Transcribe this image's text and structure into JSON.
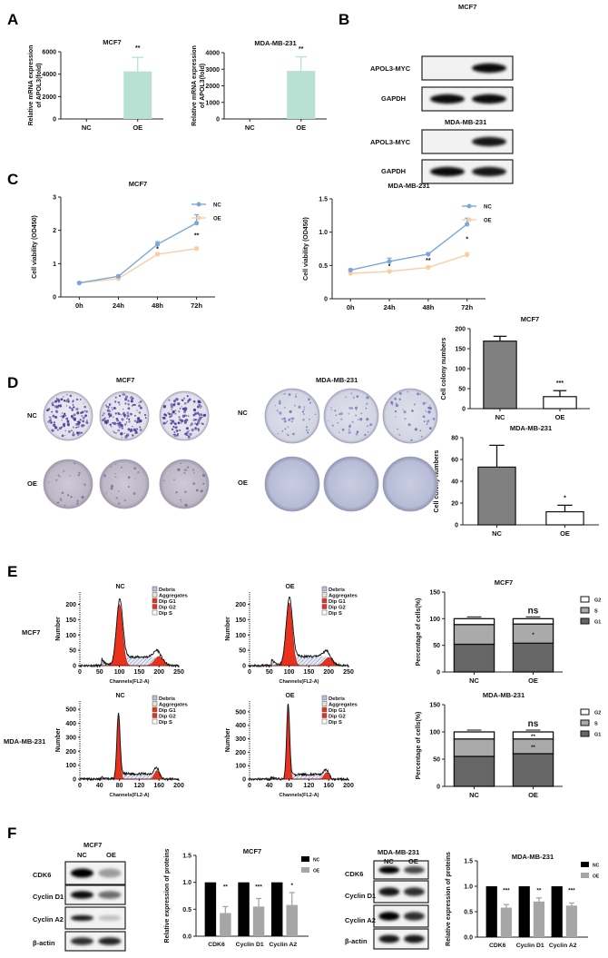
{
  "panels": {
    "A": "A",
    "B": "B",
    "C": "C",
    "D": "D",
    "E": "E",
    "F": "F"
  },
  "blots_B": {
    "groups": [
      {
        "title": "MCF7",
        "rows": [
          {
            "label": "APOL3-MYC",
            "bands": [
              0.0,
              0.95
            ]
          },
          {
            "label": "GAPDH",
            "bands": [
              0.95,
              0.95
            ]
          }
        ]
      },
      {
        "title": "MDA-MB-231",
        "rows": [
          {
            "label": "APOL3-MYC",
            "bands": [
              0.0,
              0.9
            ]
          },
          {
            "label": "GAPDH",
            "bands": [
              0.95,
              0.9
            ]
          }
        ]
      }
    ]
  },
  "plates_D": {
    "groups": [
      {
        "title": "MCF7"
      },
      {
        "title": "MDA-MB-231"
      }
    ],
    "rows": [
      "NC",
      "OE"
    ]
  },
  "flow_E": {
    "row_labels": [
      "MCF7",
      "MDA-MB-231"
    ],
    "legend": [
      "Debris",
      "Aggregates",
      "Dip G1",
      "Dip G2",
      "Dip S"
    ],
    "colors": {
      "dip": "#e8321e",
      "outline": "#111111",
      "debris": "#9aa7c7"
    },
    "histograms": [
      {
        "title": "NC",
        "xlabel": "Channels(FL2-A)",
        "ylabel": "Number",
        "xticks": [
          "0",
          "50",
          "100",
          "150",
          "200",
          "250"
        ],
        "yticks": [
          "0",
          "50",
          "100",
          "150",
          "200"
        ],
        "ylim": [
          0,
          240
        ],
        "xlim": [
          0,
          250
        ]
      },
      {
        "title": "OE",
        "xlabel": "Channels(FL2-A)",
        "ylabel": "Number",
        "xticks": [
          "0",
          "50",
          "100",
          "150",
          "200",
          "250"
        ],
        "yticks": [
          "0",
          "50",
          "100",
          "150",
          "200"
        ],
        "ylim": [
          0,
          240
        ],
        "xlim": [
          0,
          250
        ]
      },
      {
        "title": "NC",
        "xlabel": "Channels(FL2-A)",
        "ylabel": "Number",
        "xticks": [
          "0",
          "40",
          "80",
          "120",
          "160",
          "200"
        ],
        "yticks": [
          "0",
          "100",
          "200",
          "300",
          "400",
          "500"
        ],
        "ylim": [
          0,
          560
        ],
        "xlim": [
          0,
          200
        ]
      },
      {
        "title": "OE",
        "xlabel": "Channels(FL2-A)",
        "ylabel": "Number",
        "xticks": [
          "0",
          "40",
          "80",
          "120",
          "160",
          "200"
        ],
        "yticks": [
          "0",
          "100",
          "200",
          "300",
          "400",
          "500"
        ],
        "ylim": [
          0,
          580
        ],
        "xlim": [
          0,
          200
        ]
      }
    ]
  },
  "blots_F": {
    "groups": [
      {
        "title": "MCF7",
        "columns": [
          "NC",
          "OE"
        ],
        "rows": [
          {
            "label": "CDK6",
            "bands": [
              1.0,
              0.35
            ]
          },
          {
            "label": "Cyclin D1",
            "bands": [
              0.95,
              0.55
            ]
          },
          {
            "label": "Cyclin A2",
            "bands": [
              0.9,
              0.2
            ]
          },
          {
            "label": "β-actin",
            "bands": [
              0.8,
              0.85
            ]
          }
        ]
      },
      {
        "title": "MDA-MB-231",
        "columns": [
          "NC",
          "OE"
        ],
        "rows": [
          {
            "label": "CDK6",
            "bands": [
              1.0,
              0.7
            ]
          },
          {
            "label": "Cyclin D1",
            "bands": [
              0.9,
              0.8
            ]
          },
          {
            "label": "Cyclin A2",
            "bands": [
              1.0,
              0.8
            ]
          },
          {
            "label": "β-actin",
            "bands": [
              0.9,
              0.9
            ]
          }
        ]
      }
    ]
  },
  "chart_data": [
    {
      "id": "A-MCF7",
      "type": "bar",
      "title": "MCF7",
      "ylabel": [
        "Relative mRNA expression",
        "of APOL3(fold)"
      ],
      "categories": [
        "NC",
        "OE"
      ],
      "values": [
        1,
        4250
      ],
      "errors": [
        0,
        1250
      ],
      "annotations": [
        "",
        "**"
      ],
      "ylim": [
        0,
        6000
      ],
      "yticks": [
        "0",
        "2000",
        "4000",
        "6000"
      ],
      "colors": [
        "#b9e1d3",
        "#b9e1d3"
      ],
      "stroke": "none"
    },
    {
      "id": "A-MDA",
      "type": "bar",
      "title": "MDA-MB-231",
      "ylabel": [
        "Relative mRNA expression",
        "of APOL3(fold)"
      ],
      "categories": [
        "NC",
        "OE"
      ],
      "values": [
        1,
        2900
      ],
      "errors": [
        0,
        850
      ],
      "annotations": [
        "",
        "**"
      ],
      "ylim": [
        0,
        4000
      ],
      "yticks": [
        "0",
        "1000",
        "2000",
        "3000",
        "4000"
      ],
      "colors": [
        "#b9e1d3",
        "#b9e1d3"
      ],
      "stroke": "none"
    },
    {
      "id": "C-MCF7",
      "type": "line",
      "title": "MCF7",
      "ylabel": [
        "Cell viability (OD450)"
      ],
      "x": [
        "0h",
        "24h",
        "48h",
        "72h"
      ],
      "ylim": [
        0,
        3
      ],
      "yticks": [
        "0",
        "1",
        "2",
        "3"
      ],
      "series": [
        {
          "name": "NC",
          "values": [
            0.42,
            0.62,
            1.58,
            2.22
          ],
          "errors": [
            0.03,
            0.03,
            0.08,
            0.25
          ],
          "color": "#7ba7d9"
        },
        {
          "name": "OE",
          "values": [
            0.42,
            0.55,
            1.28,
            1.45
          ],
          "errors": [
            0.02,
            0.02,
            0.05,
            0.05
          ],
          "color": "#f7cfa3"
        }
      ],
      "annotations": [
        "",
        "",
        "*",
        "**"
      ]
    },
    {
      "id": "C-MDA",
      "type": "line",
      "title": "MDA-MB-231",
      "ylabel": [
        "Cell viability (OD450)"
      ],
      "x": [
        "0h",
        "24h",
        "48h",
        "72h"
      ],
      "ylim": [
        0,
        1.5
      ],
      "yticks": [
        "0",
        "0.5",
        "1.0",
        "1.5"
      ],
      "series": [
        {
          "name": "NC",
          "values": [
            0.43,
            0.56,
            0.67,
            1.12
          ],
          "errors": [
            0.02,
            0.05,
            0.02,
            0.09
          ],
          "color": "#7ba7d9"
        },
        {
          "name": "OE",
          "values": [
            0.38,
            0.41,
            0.47,
            0.66
          ],
          "errors": [
            0.01,
            0.02,
            0.02,
            0.03
          ],
          "color": "#f7cfa3"
        }
      ],
      "annotations": [
        "",
        "*",
        "**",
        "*"
      ]
    },
    {
      "id": "D-MCF7",
      "type": "bar",
      "title": "MCF7",
      "ylabel": [
        "Cell colony numbers"
      ],
      "categories": [
        "NC",
        "OE"
      ],
      "values": [
        169,
        30
      ],
      "errors": [
        12,
        15
      ],
      "annotations": [
        "",
        "***"
      ],
      "ylim": [
        0,
        200
      ],
      "yticks": [
        "0",
        "50",
        "100",
        "150",
        "200"
      ],
      "colors": [
        "#808080",
        "#ffffff"
      ],
      "stroke": "#111111"
    },
    {
      "id": "D-MDA",
      "type": "bar",
      "title": "MDA-MB-231",
      "ylabel": [
        "Cell colony numbers"
      ],
      "categories": [
        "NC",
        "OE"
      ],
      "values": [
        53,
        12
      ],
      "errors": [
        20,
        6
      ],
      "annotations": [
        "",
        "*"
      ],
      "ylim": [
        0,
        80
      ],
      "yticks": [
        "0",
        "20",
        "40",
        "60",
        "80"
      ],
      "colors": [
        "#808080",
        "#ffffff"
      ],
      "stroke": "#111111"
    },
    {
      "id": "E-MCF7",
      "type": "stacked-bar",
      "title": "MCF7",
      "ylabel": [
        "Percentage of cells(%)"
      ],
      "categories": [
        "NC",
        "OE"
      ],
      "ylim": [
        0,
        150
      ],
      "yticks": [
        "0",
        "50",
        "100",
        "150"
      ],
      "series": [
        {
          "name": "G1",
          "values": [
            52,
            54
          ],
          "color": "#666666"
        },
        {
          "name": "S",
          "values": [
            37,
            36
          ],
          "color": "#aaaaaa"
        },
        {
          "name": "G2",
          "values": [
            11,
            10
          ],
          "color": "#ffffff"
        }
      ],
      "annotation": [
        "",
        "ns"
      ],
      "inner_annotations": [
        {
          "category": 1,
          "series": "S",
          "text": "*"
        }
      ]
    },
    {
      "id": "E-MDA",
      "type": "stacked-bar",
      "title": "MDA-MB-231",
      "ylabel": [
        "Percentage of cells(%)"
      ],
      "categories": [
        "NC",
        "OE"
      ],
      "ylim": [
        0,
        150
      ],
      "yticks": [
        "0",
        "50",
        "100",
        "150"
      ],
      "series": [
        {
          "name": "G1",
          "values": [
            55,
            60
          ],
          "color": "#666666"
        },
        {
          "name": "S",
          "values": [
            32,
            27
          ],
          "color": "#aaaaaa"
        },
        {
          "name": "G2",
          "values": [
            13,
            13
          ],
          "color": "#ffffff"
        }
      ],
      "annotation": [
        "",
        "ns"
      ],
      "inner_annotations": [
        {
          "category": 1,
          "series": "S",
          "text": "**"
        },
        {
          "category": 1,
          "series": "G2",
          "text": "**"
        }
      ]
    },
    {
      "id": "F-MCF7",
      "type": "grouped-bar",
      "title": "MCF7",
      "ylabel": [
        "Relative expression of proteins"
      ],
      "categories": [
        "CDK6",
        "Cyclin D1",
        "Cyclin A2"
      ],
      "ylim": [
        0,
        1.5
      ],
      "yticks": [
        "0.0",
        "0.5",
        "1.0",
        "1.5"
      ],
      "series": [
        {
          "name": "NC",
          "values": [
            1,
            1,
            1
          ],
          "errors": [
            0,
            0,
            0
          ],
          "color": "#000000"
        },
        {
          "name": "OE",
          "values": [
            0.43,
            0.55,
            0.58
          ],
          "errors": [
            0.12,
            0.15,
            0.23
          ],
          "color": "#a6a6a6"
        }
      ],
      "annotations": [
        "**",
        "***",
        "*"
      ]
    },
    {
      "id": "F-MDA",
      "type": "grouped-bar",
      "title": "MDA-MB-231",
      "ylabel": [
        "Relative expression of proteins"
      ],
      "categories": [
        "CDK6",
        "Cyclin D1",
        "Cyclin A2"
      ],
      "ylim": [
        0,
        1.5
      ],
      "yticks": [
        "0.0",
        "0.5",
        "1.0",
        "1.5"
      ],
      "series": [
        {
          "name": "NC",
          "values": [
            1,
            1,
            1
          ],
          "errors": [
            0,
            0,
            0
          ],
          "color": "#000000"
        },
        {
          "name": "OE",
          "values": [
            0.58,
            0.7,
            0.62
          ],
          "errors": [
            0.06,
            0.07,
            0.05
          ],
          "color": "#a6a6a6"
        }
      ],
      "annotations": [
        "***",
        "**",
        "***"
      ]
    }
  ]
}
